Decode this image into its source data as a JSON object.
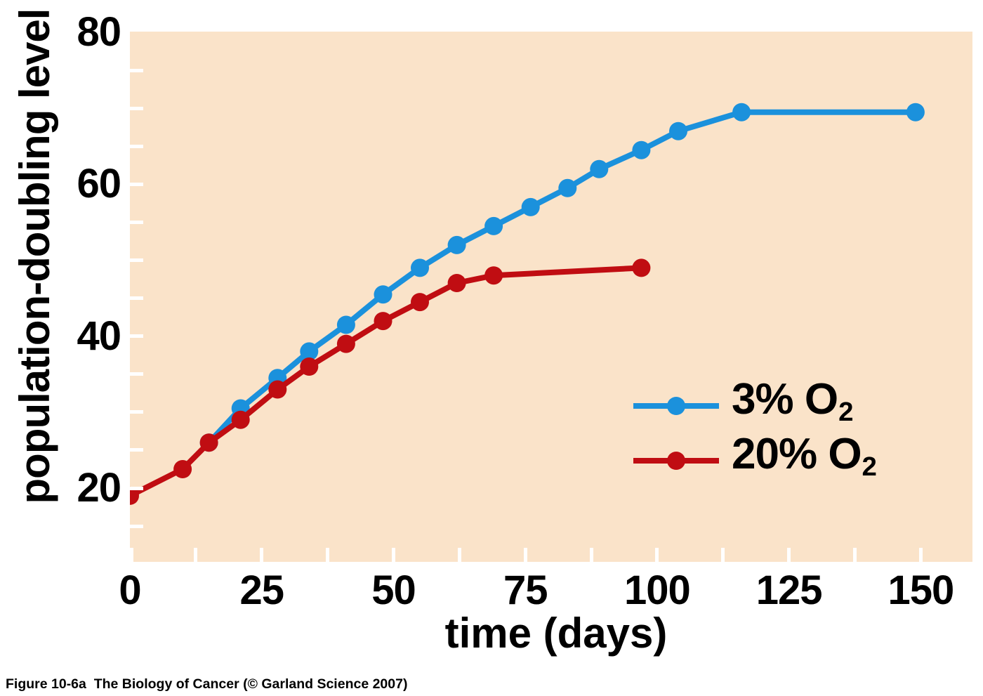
{
  "figure": {
    "caption": "Figure 10-6a  The Biology of Cancer (© Garland Science 2007)"
  },
  "chart_data": {
    "type": "line",
    "title": "",
    "xlabel": "time (days)",
    "ylabel": "population-doubling level",
    "xlim": [
      0,
      159.8
    ],
    "ylim": [
      10.3,
      80.1
    ],
    "xticks_labeled": [
      0,
      25,
      50,
      75,
      100,
      125,
      150
    ],
    "xticks_minor_interval": 12.5,
    "yticks_labeled": [
      20,
      40,
      60,
      80
    ],
    "yticks_minor_interval": 5,
    "grid": false,
    "plot_bg": "#FAE3C9",
    "tick_color": "#FFFFFF",
    "text_color": "#000000",
    "legend_position": "inside-right-middle",
    "marker_radius": 13,
    "line_width": 8,
    "series": [
      {
        "name": "3% O2",
        "label_prefix": "3% O",
        "label_sub": "2",
        "color": "#1B91DC",
        "points": [
          [
            15,
            26
          ],
          [
            21,
            30.5
          ],
          [
            28,
            34.5
          ],
          [
            34,
            38
          ],
          [
            41,
            41.5
          ],
          [
            48,
            45.5
          ],
          [
            55,
            49
          ],
          [
            62,
            52
          ],
          [
            69,
            54.5
          ],
          [
            76,
            57
          ],
          [
            83,
            59.5
          ],
          [
            89,
            62
          ],
          [
            97,
            64.5
          ],
          [
            104,
            67
          ],
          [
            116,
            69.5
          ],
          [
            149,
            69.5
          ]
        ]
      },
      {
        "name": "20% O2",
        "label_prefix": "20% O",
        "label_sub": "2",
        "color": "#C00D12",
        "points": [
          [
            0,
            19
          ],
          [
            10,
            22.5
          ],
          [
            15,
            26
          ],
          [
            21,
            29
          ],
          [
            28,
            33
          ],
          [
            34,
            36
          ],
          [
            41,
            39
          ],
          [
            48,
            42
          ],
          [
            55,
            44.5
          ],
          [
            62,
            47
          ],
          [
            69,
            48
          ],
          [
            97,
            49
          ]
        ]
      }
    ]
  }
}
